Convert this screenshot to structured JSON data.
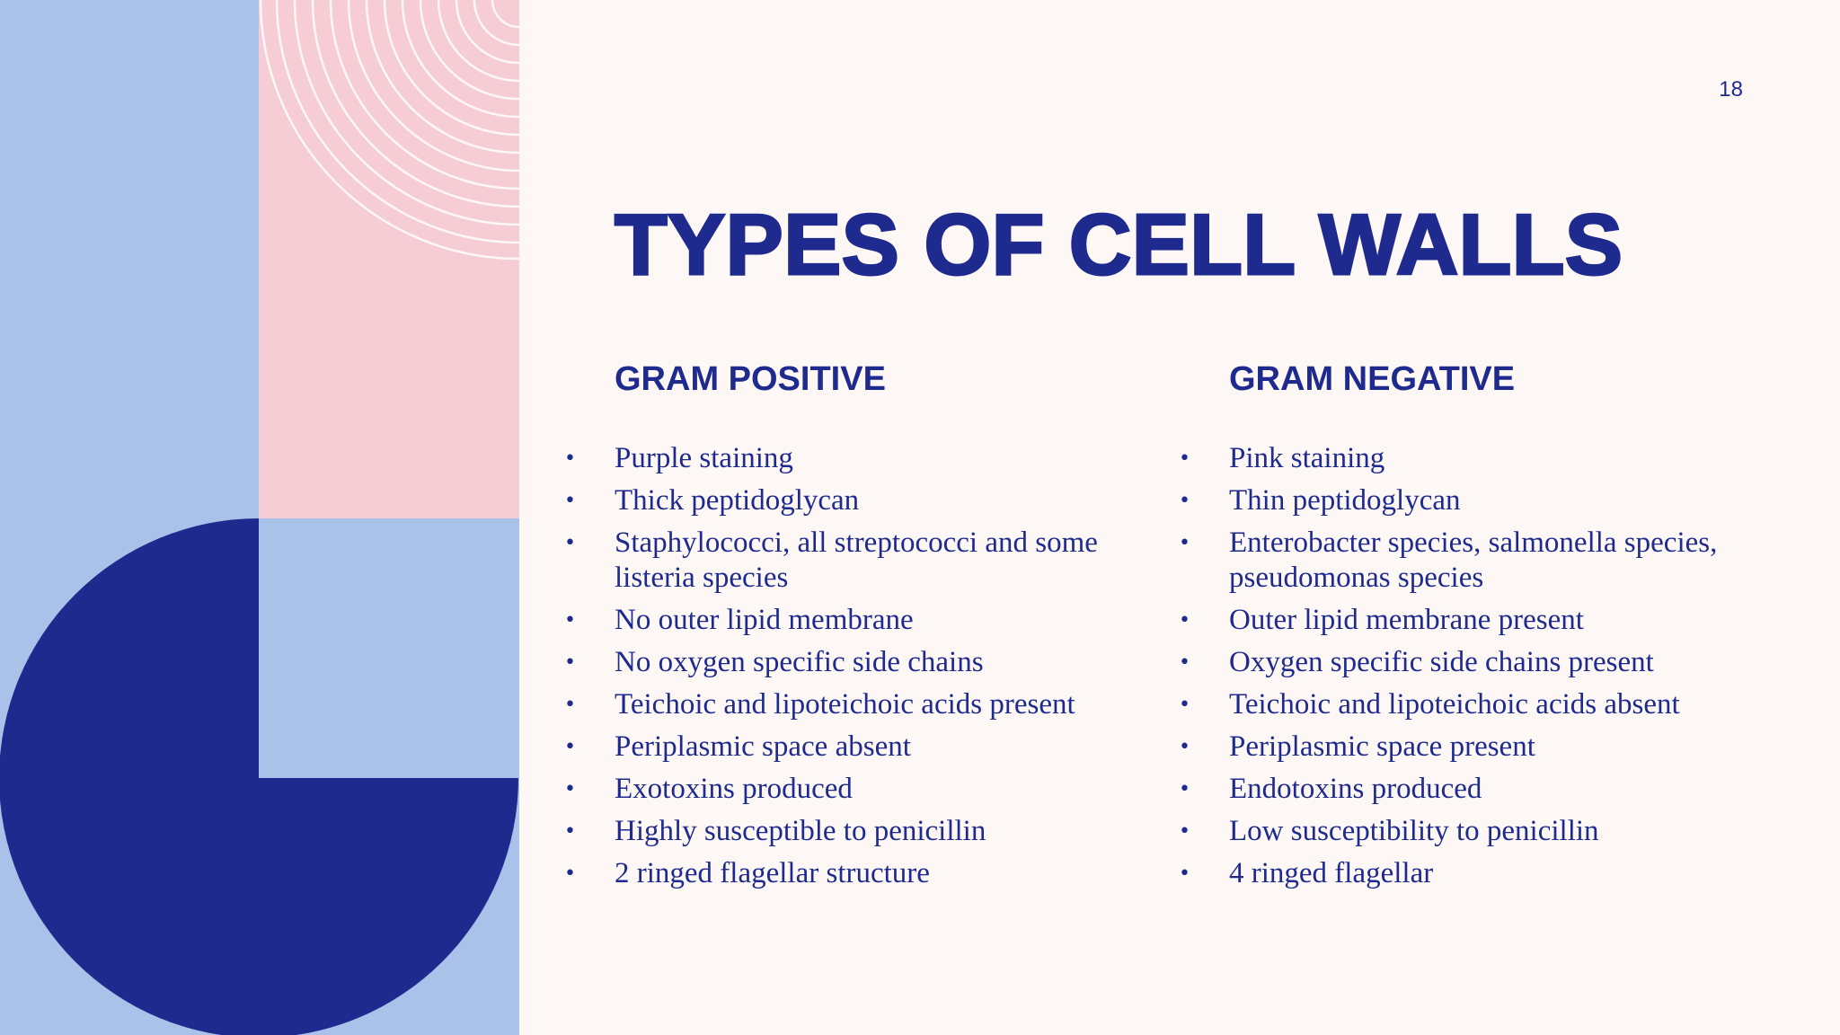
{
  "slide": {
    "page_number": "18",
    "title": "TYPES OF CELL WALLS"
  },
  "gram_positive": {
    "heading": "GRAM POSITIVE",
    "items": [
      "Purple staining",
      "Thick peptidoglycan",
      "Staphylococci, all streptococci and some listeria species",
      "No outer lipid membrane",
      "No oxygen specific side chains",
      "Teichoic and lipoteichoic acids present",
      "Periplasmic space absent",
      "Exotoxins produced",
      "Highly susceptible to penicillin",
      "2 ringed flagellar structure"
    ]
  },
  "gram_negative": {
    "heading": "GRAM NEGATIVE",
    "items": [
      "Pink staining",
      "Thin peptidoglycan",
      "Enterobacter species, salmonella species, pseudomonas species",
      "Outer lipid membrane present",
      "Oxygen specific side chains present",
      "Teichoic and lipoteichoic acids absent",
      "Periplasmic space present",
      "Endotoxins produced",
      "Low susceptibility to penicillin",
      "4 ringed flagellar"
    ]
  },
  "colors": {
    "navy": "#1e2a8e",
    "light_blue": "#aac1e9",
    "pink": "#f6cdd4",
    "background": "#fdf7f6"
  },
  "bullet_glyph": "•"
}
